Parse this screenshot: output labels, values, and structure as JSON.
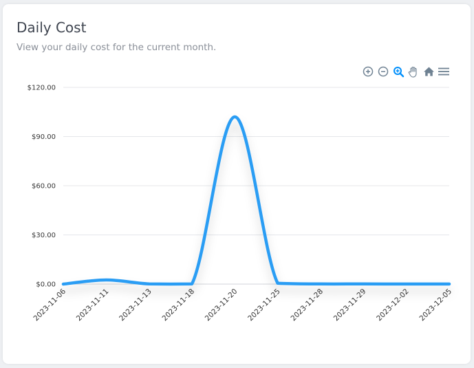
{
  "card": {
    "title": "Daily Cost",
    "subtitle": "View your daily cost for the current month."
  },
  "toolbar": {
    "icons": [
      "zoom-in-icon",
      "zoom-out-icon",
      "selection-zoom-icon",
      "pan-hand-icon",
      "reset-home-icon",
      "menu-icon"
    ],
    "active_color": "#008ffb",
    "color": "#6e8192"
  },
  "chart_data": {
    "type": "line",
    "title": "",
    "xlabel": "",
    "ylabel": "",
    "categories": [
      "2023-11-06",
      "2023-11-11",
      "2023-11-13",
      "2023-11-18",
      "2023-11-20",
      "2023-11-25",
      "2023-11-28",
      "2023-11-29",
      "2023-12-02",
      "2023-12-05"
    ],
    "series": [
      {
        "values": [
          0,
          2.5,
          0.1,
          0.1,
          102,
          0.5,
          0.1,
          0.1,
          0.05,
          0.05
        ]
      }
    ],
    "y_ticks": [
      "$0.00",
      "$30.00",
      "$60.00",
      "$90.00",
      "$120.00"
    ],
    "ylim": [
      0,
      120
    ],
    "grid": true,
    "line_color": "#2a9df4",
    "smooth": true
  }
}
